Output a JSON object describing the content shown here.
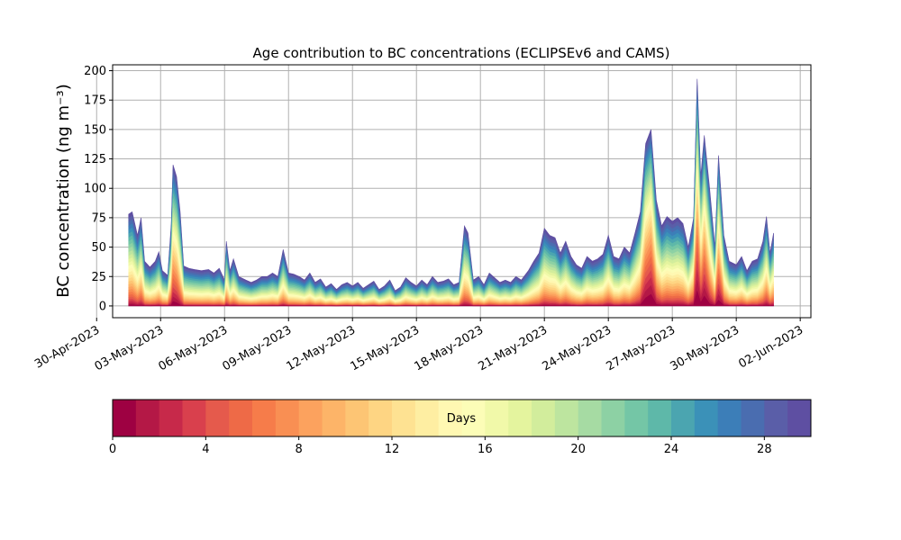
{
  "chart_data": {
    "type": "area",
    "stacked": true,
    "title": "Age contribution to BC concentrations (ECLIPSEv6 and CAMS)",
    "ylabel": "BC concentration (ng m⁻³)",
    "xlabel": "",
    "ylim": [
      -10,
      205
    ],
    "xlim": [
      "2023-04-30T18:00",
      "2023-06-02T12:00"
    ],
    "x_data_range": [
      "2023-05-01T12:00",
      "2023-05-31T18:00"
    ],
    "grid": true,
    "x_ticks": [
      "30-Apr-2023",
      "03-May-2023",
      "06-May-2023",
      "09-May-2023",
      "12-May-2023",
      "15-May-2023",
      "18-May-2023",
      "21-May-2023",
      "24-May-2023",
      "27-May-2023",
      "30-May-2023",
      "02-Jun-2023"
    ],
    "y_ticks": [
      0,
      25,
      50,
      75,
      100,
      125,
      150,
      175,
      200
    ],
    "total_series": [
      [
        "2023-05-01T12:00",
        78
      ],
      [
        "2023-05-01T16:00",
        80
      ],
      [
        "2023-05-01T22:00",
        60
      ],
      [
        "2023-05-02T02:00",
        75
      ],
      [
        "2023-05-02T06:00",
        38
      ],
      [
        "2023-05-02T12:00",
        33
      ],
      [
        "2023-05-02T18:00",
        38
      ],
      [
        "2023-05-02T22:00",
        46
      ],
      [
        "2023-05-03T02:00",
        30
      ],
      [
        "2023-05-03T08:00",
        26
      ],
      [
        "2023-05-03T12:00",
        70
      ],
      [
        "2023-05-03T14:00",
        120
      ],
      [
        "2023-05-03T18:00",
        110
      ],
      [
        "2023-05-03T22:00",
        80
      ],
      [
        "2023-05-04T02:00",
        34
      ],
      [
        "2023-05-04T08:00",
        32
      ],
      [
        "2023-05-04T14:00",
        31
      ],
      [
        "2023-05-04T22:00",
        30
      ],
      [
        "2023-05-05T06:00",
        31
      ],
      [
        "2023-05-05T12:00",
        28
      ],
      [
        "2023-05-05T18:00",
        32
      ],
      [
        "2023-05-06T00:00",
        22
      ],
      [
        "2023-05-06T02:00",
        55
      ],
      [
        "2023-05-06T06:00",
        30
      ],
      [
        "2023-05-06T10:00",
        40
      ],
      [
        "2023-05-06T16:00",
        25
      ],
      [
        "2023-05-07T00:00",
        22
      ],
      [
        "2023-05-07T06:00",
        20
      ],
      [
        "2023-05-07T12:00",
        22
      ],
      [
        "2023-05-07T18:00",
        25
      ],
      [
        "2023-05-08T00:00",
        25
      ],
      [
        "2023-05-08T06:00",
        28
      ],
      [
        "2023-05-08T12:00",
        25
      ],
      [
        "2023-05-08T18:00",
        48
      ],
      [
        "2023-05-09T00:00",
        28
      ],
      [
        "2023-05-09T06:00",
        27
      ],
      [
        "2023-05-09T12:00",
        25
      ],
      [
        "2023-05-09T18:00",
        22
      ],
      [
        "2023-05-10T00:00",
        28
      ],
      [
        "2023-05-10T06:00",
        20
      ],
      [
        "2023-05-10T12:00",
        23
      ],
      [
        "2023-05-10T18:00",
        16
      ],
      [
        "2023-05-11T00:00",
        19
      ],
      [
        "2023-05-11T06:00",
        14
      ],
      [
        "2023-05-11T12:00",
        18
      ],
      [
        "2023-05-11T18:00",
        20
      ],
      [
        "2023-05-12T00:00",
        17
      ],
      [
        "2023-05-12T06:00",
        20
      ],
      [
        "2023-05-12T12:00",
        15
      ],
      [
        "2023-05-12T18:00",
        18
      ],
      [
        "2023-05-13T00:00",
        21
      ],
      [
        "2023-05-13T06:00",
        14
      ],
      [
        "2023-05-13T12:00",
        17
      ],
      [
        "2023-05-13T18:00",
        22
      ],
      [
        "2023-05-14T00:00",
        13
      ],
      [
        "2023-05-14T06:00",
        16
      ],
      [
        "2023-05-14T12:00",
        24
      ],
      [
        "2023-05-14T18:00",
        20
      ],
      [
        "2023-05-15T00:00",
        17
      ],
      [
        "2023-05-15T06:00",
        22
      ],
      [
        "2023-05-15T12:00",
        18
      ],
      [
        "2023-05-15T18:00",
        25
      ],
      [
        "2023-05-16T00:00",
        20
      ],
      [
        "2023-05-16T06:00",
        21
      ],
      [
        "2023-05-16T12:00",
        23
      ],
      [
        "2023-05-16T18:00",
        18
      ],
      [
        "2023-05-17T00:00",
        20
      ],
      [
        "2023-05-17T06:00",
        68
      ],
      [
        "2023-05-17T10:00",
        62
      ],
      [
        "2023-05-17T16:00",
        22
      ],
      [
        "2023-05-17T22:00",
        25
      ],
      [
        "2023-05-18T04:00",
        18
      ],
      [
        "2023-05-18T10:00",
        28
      ],
      [
        "2023-05-18T16:00",
        24
      ],
      [
        "2023-05-18T22:00",
        20
      ],
      [
        "2023-05-19T04:00",
        22
      ],
      [
        "2023-05-19T10:00",
        20
      ],
      [
        "2023-05-19T16:00",
        25
      ],
      [
        "2023-05-19T22:00",
        22
      ],
      [
        "2023-05-20T06:00",
        30
      ],
      [
        "2023-05-20T12:00",
        38
      ],
      [
        "2023-05-20T18:00",
        45
      ],
      [
        "2023-05-21T00:00",
        66
      ],
      [
        "2023-05-21T06:00",
        60
      ],
      [
        "2023-05-21T12:00",
        58
      ],
      [
        "2023-05-21T18:00",
        45
      ],
      [
        "2023-05-22T00:00",
        55
      ],
      [
        "2023-05-22T06:00",
        42
      ],
      [
        "2023-05-22T12:00",
        35
      ],
      [
        "2023-05-22T18:00",
        32
      ],
      [
        "2023-05-23T00:00",
        42
      ],
      [
        "2023-05-23T06:00",
        38
      ],
      [
        "2023-05-23T12:00",
        40
      ],
      [
        "2023-05-23T18:00",
        44
      ],
      [
        "2023-05-24T00:00",
        60
      ],
      [
        "2023-05-24T06:00",
        42
      ],
      [
        "2023-05-24T12:00",
        40
      ],
      [
        "2023-05-24T18:00",
        50
      ],
      [
        "2023-05-25T00:00",
        45
      ],
      [
        "2023-05-25T06:00",
        62
      ],
      [
        "2023-05-25T12:00",
        80
      ],
      [
        "2023-05-25T18:00",
        138
      ],
      [
        "2023-05-26T00:00",
        150
      ],
      [
        "2023-05-26T06:00",
        90
      ],
      [
        "2023-05-26T12:00",
        68
      ],
      [
        "2023-05-26T18:00",
        76
      ],
      [
        "2023-05-27T00:00",
        72
      ],
      [
        "2023-05-27T06:00",
        75
      ],
      [
        "2023-05-27T12:00",
        70
      ],
      [
        "2023-05-27T18:00",
        50
      ],
      [
        "2023-05-28T00:00",
        75
      ],
      [
        "2023-05-28T04:00",
        193
      ],
      [
        "2023-05-28T08:00",
        110
      ],
      [
        "2023-05-28T12:00",
        145
      ],
      [
        "2023-05-28T18:00",
        100
      ],
      [
        "2023-05-29T00:00",
        50
      ],
      [
        "2023-05-29T04:00",
        128
      ],
      [
        "2023-05-29T10:00",
        60
      ],
      [
        "2023-05-29T16:00",
        38
      ],
      [
        "2023-05-30T00:00",
        35
      ],
      [
        "2023-05-30T06:00",
        42
      ],
      [
        "2023-05-30T12:00",
        30
      ],
      [
        "2023-05-30T18:00",
        38
      ],
      [
        "2023-05-31T00:00",
        40
      ],
      [
        "2023-05-31T06:00",
        55
      ],
      [
        "2023-05-31T10:00",
        76
      ],
      [
        "2023-05-31T14:00",
        45
      ],
      [
        "2023-05-31T18:00",
        62
      ]
    ],
    "colorbar": {
      "label": "Days",
      "range": [
        0,
        30
      ],
      "ticks": [
        0,
        4,
        8,
        12,
        16,
        20,
        24,
        28
      ],
      "n_bins": 30,
      "colormap": "Spectral",
      "colors": [
        "#9e0142",
        "#b41846",
        "#c7294a",
        "#d9404d",
        "#e55a4c",
        "#ee6a47",
        "#f67c4a",
        "#f98f53",
        "#fca25e",
        "#fdb468",
        "#fdc574",
        "#fed583",
        "#fee292",
        "#feeea2",
        "#fff8b2",
        "#fcfdb7",
        "#f1f9a9",
        "#e4f49e",
        "#d2ed9c",
        "#bde59f",
        "#a6dba3",
        "#8dd1a4",
        "#74c6a6",
        "#5eb8a9",
        "#4ba5b0",
        "#3b91b8",
        "#3c7eb8",
        "#4a6db0",
        "#5a5ea8",
        "#5e4fa2"
      ]
    }
  }
}
